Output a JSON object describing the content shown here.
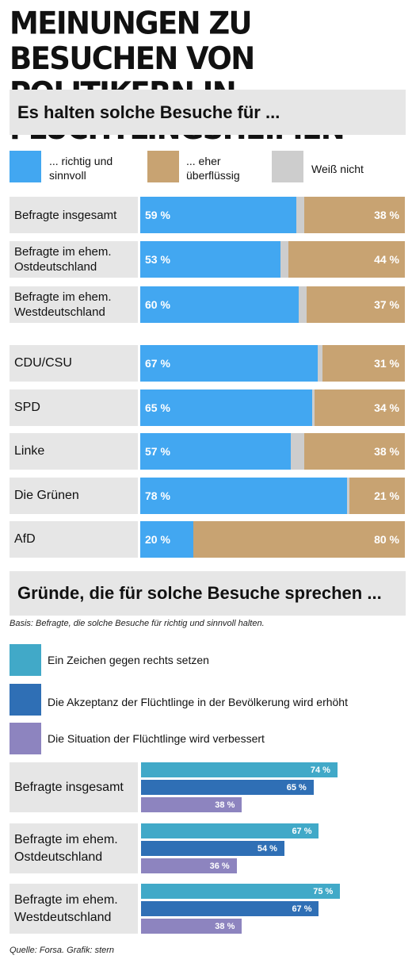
{
  "title": "Meinungen zu Besuchen von Politikern in Flüchtlingsheimen",
  "chart_data": [
    {
      "type": "bar",
      "stacked": true,
      "orientation": "horizontal",
      "title": "Es halten solche Besuche für ...",
      "legend": [
        "... richtig und sinnvoll",
        "... eher überflüssig",
        "Weiß nicht"
      ],
      "colors": {
        "richtig": "#42a7f1",
        "ueberfluessig": "#c8a372",
        "weiss": "#cdcdcd"
      },
      "categories": [
        "Befragte insgesamt",
        "Befragte im ehem.\nOstdeutschland",
        "Befragte im ehem.\nWestdeutschland",
        "CDU/CSU",
        "SPD",
        "Linke",
        "Die Grünen",
        "AfD"
      ],
      "series": [
        {
          "name": "... richtig und sinnvoll",
          "values": [
            59,
            53,
            60,
            67,
            65,
            57,
            78,
            20
          ]
        },
        {
          "name": "... eher überflüssig",
          "values": [
            38,
            44,
            37,
            31,
            34,
            38,
            21,
            80
          ]
        }
      ],
      "xlim": [
        0,
        100
      ]
    },
    {
      "type": "bar",
      "orientation": "horizontal",
      "title": "Gründe, die für solche Besuche sprechen ...",
      "subtitle": "Basis: Befragte, die solche Besuche für richtig und sinnvoll halten.",
      "legend": [
        "Ein Zeichen gegen rechts setzen",
        "Die Akzeptanz der Flüchtlinge in der Bevölkerung wird erhöht",
        "Die Situation der Flüchtlinge wird verbessert"
      ],
      "colors": [
        "#41a9c8",
        "#2f6fb5",
        "#8d84bf"
      ],
      "categories": [
        "Befragte insgesamt",
        "Befragte im ehem.\nOstdeutschland",
        "Befragte im ehem.\nWestdeutschland"
      ],
      "series": [
        {
          "name": "Ein Zeichen gegen rechts setzen",
          "values": [
            74,
            67,
            75
          ]
        },
        {
          "name": "Die Akzeptanz der Flüchtlinge in der Bevölkerung wird erhöht",
          "values": [
            65,
            54,
            67
          ]
        },
        {
          "name": "Die Situation der Flüchtlinge wird verbessert",
          "values": [
            38,
            36,
            38
          ]
        }
      ],
      "xlim": [
        0,
        100
      ]
    }
  ],
  "source": "Quelle: Forsa. Grafik: stern"
}
